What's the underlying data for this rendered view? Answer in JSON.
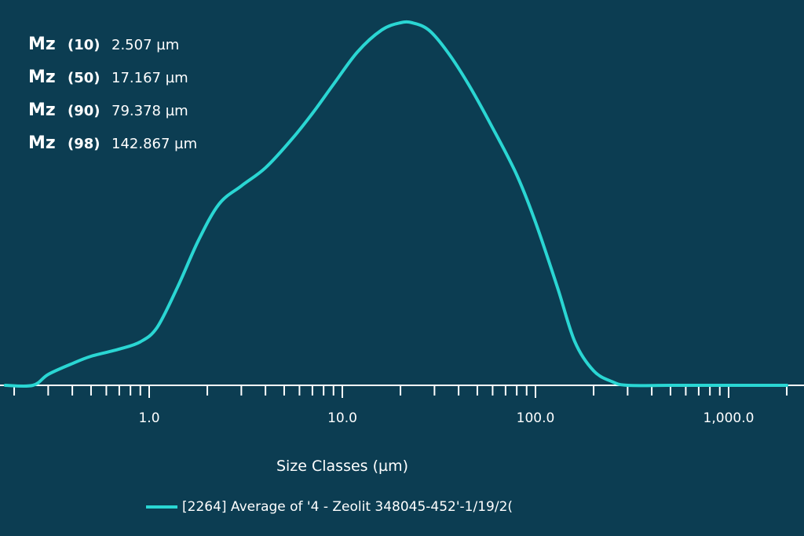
{
  "colors": {
    "background": "#0c3d52",
    "series": "#2ad6d3",
    "axis": "#ffffff"
  },
  "stats": [
    {
      "label": "Mz",
      "pct": "(10)",
      "value": "2.507 µm"
    },
    {
      "label": "Mz",
      "pct": "(50)",
      "value": "17.167 µm"
    },
    {
      "label": "Mz",
      "pct": "(90)",
      "value": "79.378 µm"
    },
    {
      "label": "Mz",
      "pct": "(98)",
      "value": "142.867 µm"
    }
  ],
  "legend": {
    "text": "[2264] Average of '4 - Zeolit    348045-452'-1/19/2("
  },
  "chart_data": {
    "type": "line",
    "xlabel": "Size Classes (µm)",
    "xscale": "log",
    "xlim": [
      0.18,
      2000
    ],
    "ylim": [
      0,
      1
    ],
    "ticks": [
      {
        "value": 1,
        "label": "1.0"
      },
      {
        "value": 10,
        "label": "10.0"
      },
      {
        "value": 100,
        "label": "100.0"
      },
      {
        "value": 1000,
        "label": "1,000.0"
      }
    ],
    "grid": false,
    "legend_position": "bottom",
    "series": [
      {
        "name": "[2264] Average of '4 - Zeolit    348045-452'-1/19/2(",
        "x": [
          0.18,
          0.25,
          0.3,
          0.4,
          0.5,
          0.7,
          0.9,
          1.1,
          1.4,
          1.8,
          2.3,
          3.0,
          4.0,
          5.5,
          7.0,
          9.0,
          12.0,
          16.0,
          20.0,
          23.0,
          28.0,
          35.0,
          45.0,
          60.0,
          80.0,
          100.0,
          130.0,
          160.0,
          200.0,
          250.0,
          300.0,
          500.0,
          1000.0,
          2000.0
        ],
        "y": [
          0.0,
          0.0,
          0.03,
          0.06,
          0.08,
          0.1,
          0.12,
          0.16,
          0.27,
          0.4,
          0.5,
          0.55,
          0.6,
          0.68,
          0.75,
          0.83,
          0.92,
          0.98,
          1.0,
          1.0,
          0.98,
          0.92,
          0.83,
          0.71,
          0.58,
          0.45,
          0.27,
          0.12,
          0.04,
          0.01,
          0.0,
          0.0,
          0.0,
          0.0
        ]
      }
    ]
  }
}
